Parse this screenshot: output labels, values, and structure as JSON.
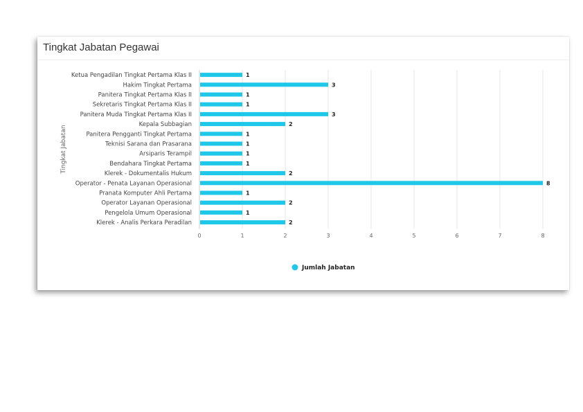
{
  "card": {
    "title": "Tingkat Jabatan Pegawai"
  },
  "chart_data": {
    "type": "bar",
    "orientation": "horizontal",
    "title": "Tingkat Jabatan Pegawai",
    "ylabel": "Tingkat Jabatan",
    "xlabel": "",
    "xlim": [
      0,
      8
    ],
    "xticks": [
      0,
      1,
      2,
      3,
      4,
      5,
      6,
      7,
      8
    ],
    "grid": true,
    "legend_position": "bottom-center",
    "color": "#1fc8e8",
    "categories": [
      "Ketua Pengadilan Tingkat Pertama Klas II",
      "Hakim Tingkat Pertama",
      "Panitera Tingkat Pertama Klas II",
      "Sekretaris Tingkat Pertama Klas II",
      "Panitera Muda Tingkat Pertama Klas II",
      "Kepala Subbagian",
      "Panitera Pengganti Tingkat Pertama",
      "Teknisi Sarana dan Prasarana",
      "Arsiparis Terampil",
      "Bendahara Tingkat Pertama",
      "Klerek - Dokumentalis Hukum",
      "Operator - Penata Layanan Operasional",
      "Pranata Komputer Ahli Pertama",
      "Operator Layanan Operasional",
      "Pengelola Umum Operasional",
      "Klerek - Analis Perkara Peradilan"
    ],
    "series": [
      {
        "name": "Jumlah Jabatan",
        "values": [
          1,
          3,
          1,
          1,
          3,
          2,
          1,
          1,
          1,
          1,
          2,
          8,
          1,
          2,
          1,
          2
        ]
      }
    ]
  }
}
